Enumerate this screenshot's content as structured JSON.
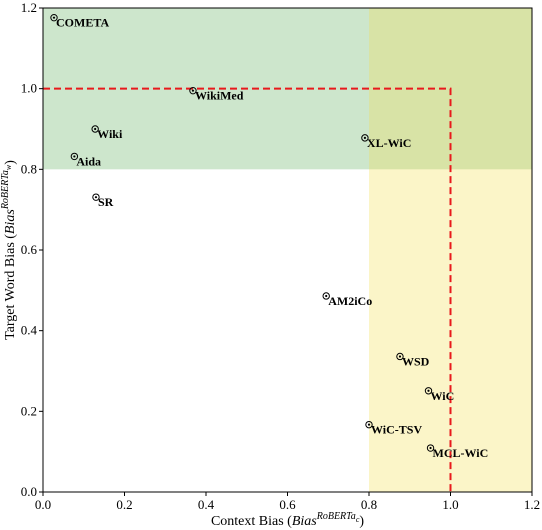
{
  "chart_data": {
    "type": "scatter",
    "title": "",
    "xlabel": "Context Bias (",
    "xlabel_math": "Bias",
    "xlabel_sup": "RoBERTa",
    "xlabel_sub": "c",
    "xlabel_close": ")",
    "ylabel": "Target Word Bias (",
    "ylabel_math": "Bias",
    "ylabel_sup": "RoBERTa",
    "ylabel_sub": "w",
    "ylabel_close": ")",
    "xlim": [
      0.0,
      1.2
    ],
    "ylim": [
      0.0,
      1.2
    ],
    "xticks": [
      "0.0",
      "0.2",
      "0.4",
      "0.6",
      "0.8",
      "1.0",
      "1.2"
    ],
    "yticks": [
      "0.0",
      "0.2",
      "0.4",
      "0.6",
      "0.8",
      "1.0",
      "1.2"
    ],
    "regions": [
      {
        "name": "green",
        "x": [
          0.0,
          1.2
        ],
        "y": [
          0.8,
          1.2
        ],
        "color": "#cde6cc"
      },
      {
        "name": "yellow",
        "x": [
          0.8,
          1.2
        ],
        "y": [
          0.0,
          1.2
        ],
        "color": "#fbf5c8"
      },
      {
        "name": "overlap",
        "x": [
          0.8,
          1.2
        ],
        "y": [
          0.8,
          1.2
        ],
        "color": "#d8e3a6"
      }
    ],
    "threshold": {
      "x": 1.0,
      "y": 1.0,
      "color": "#e8191c",
      "style": "dashed"
    },
    "points": [
      {
        "label": "COMETA",
        "x": 0.027,
        "y": 1.176
      },
      {
        "label": "WikiMed",
        "x": 0.368,
        "y": 0.995
      },
      {
        "label": "Wiki",
        "x": 0.128,
        "y": 0.9
      },
      {
        "label": "Aida",
        "x": 0.077,
        "y": 0.832
      },
      {
        "label": "SR",
        "x": 0.13,
        "y": 0.731
      },
      {
        "label": "XL-WiC",
        "x": 0.79,
        "y": 0.878
      },
      {
        "label": "AM2iCo",
        "x": 0.695,
        "y": 0.486
      },
      {
        "label": "WSD",
        "x": 0.876,
        "y": 0.336
      },
      {
        "label": "WiC",
        "x": 0.946,
        "y": 0.251
      },
      {
        "label": "WiC-TSV",
        "x": 0.8,
        "y": 0.167
      },
      {
        "label": "MCL-WiC",
        "x": 0.951,
        "y": 0.109
      }
    ]
  }
}
